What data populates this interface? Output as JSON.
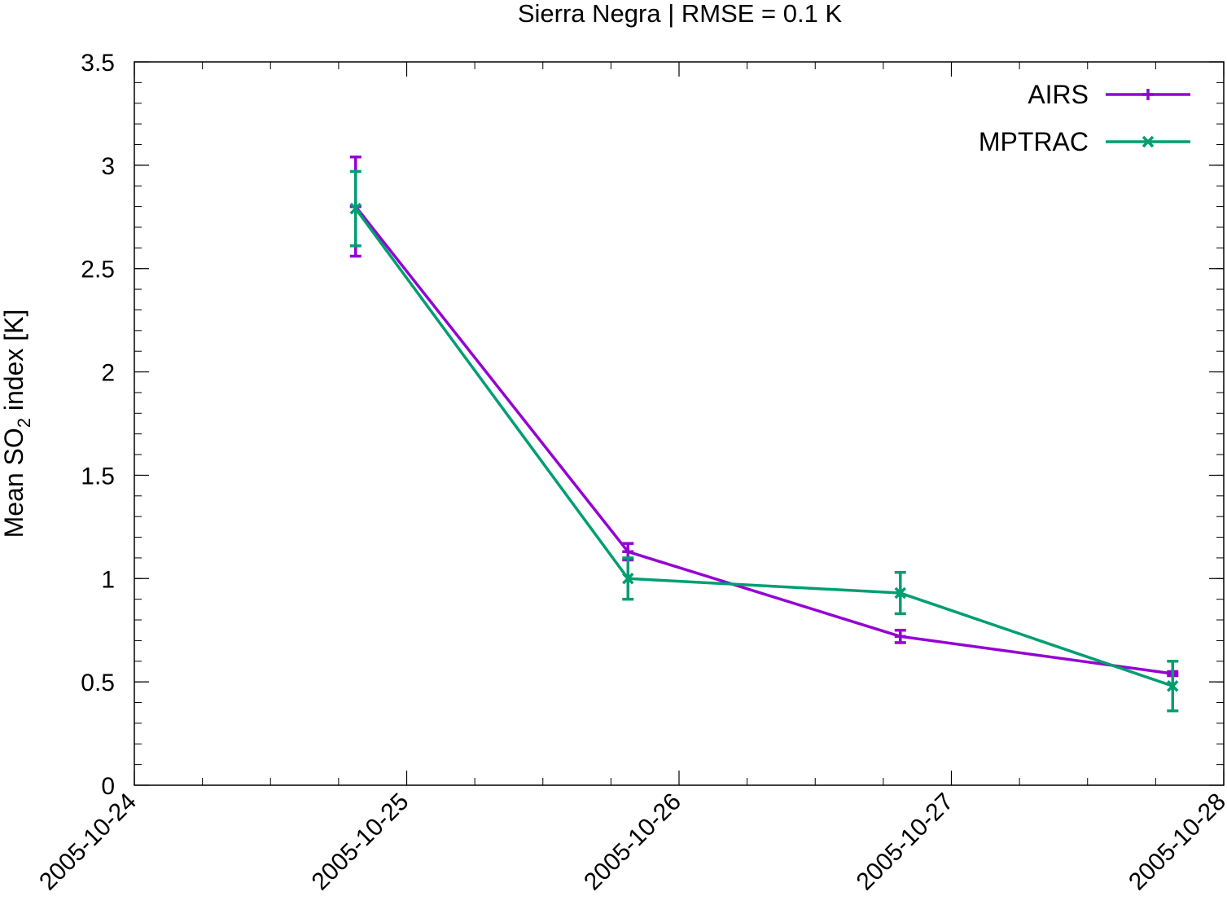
{
  "chart_data": {
    "type": "line",
    "title": "Sierra Negra | RMSE = 0.1 K",
    "xlabel": "",
    "ylabel_parts": [
      "Mean SO",
      "2",
      " index [K]"
    ],
    "ylim": [
      0,
      3.5
    ],
    "yticks": [
      0,
      0.5,
      1,
      1.5,
      2,
      2.5,
      3,
      3.5
    ],
    "ytick_labels": [
      "0",
      "0.5",
      "1",
      "1.5",
      "2",
      "2.5",
      "3",
      "3.5"
    ],
    "xlim": [
      "2005-10-24T00:00",
      "2005-10-28T00:00"
    ],
    "xticks": [
      "2005-10-24",
      "2005-10-25",
      "2005-10-26",
      "2005-10-27",
      "2005-10-28"
    ],
    "x_minor_ticks_per_day": 4,
    "y_minor_step": 0.1,
    "grid": false,
    "legend_position": "top-right",
    "series": [
      {
        "name": "AIRS",
        "color": "#9400d3",
        "marker": "plus",
        "x": [
          "2005-10-24T19:30",
          "2005-10-25T19:30",
          "2005-10-26T19:30",
          "2005-10-27T19:30"
        ],
        "y": [
          2.8,
          1.13,
          0.72,
          0.54
        ],
        "err": [
          0.24,
          0.04,
          0.03,
          0.01
        ]
      },
      {
        "name": "MPTRAC",
        "color": "#009e73",
        "marker": "cross",
        "x": [
          "2005-10-24T19:30",
          "2005-10-25T19:30",
          "2005-10-26T19:30",
          "2005-10-27T19:30"
        ],
        "y": [
          2.79,
          1.0,
          0.93,
          0.48
        ],
        "err": [
          0.18,
          0.1,
          0.1,
          0.12
        ]
      }
    ]
  }
}
